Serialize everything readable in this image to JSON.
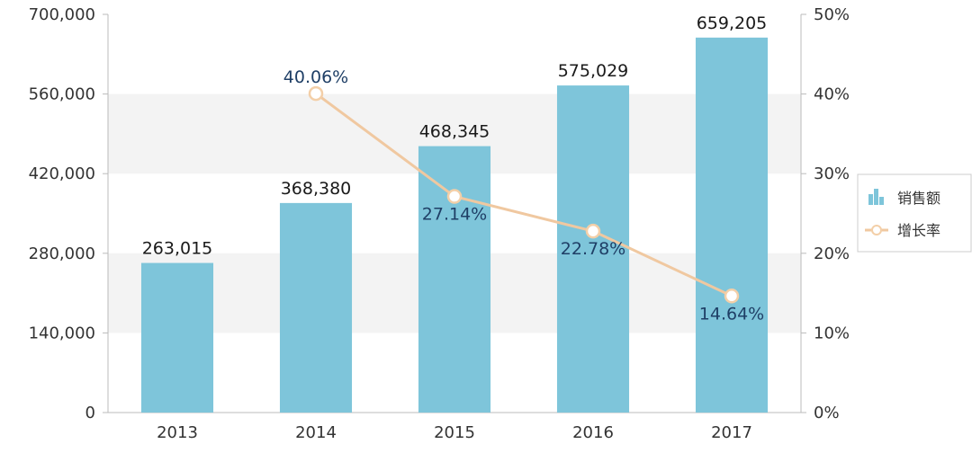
{
  "chart_data": {
    "type": "bar",
    "categories": [
      "2013",
      "2014",
      "2015",
      "2016",
      "2017"
    ],
    "series": [
      {
        "name": "销售额",
        "kind": "bar",
        "axis": "left",
        "values": [
          263015,
          368380,
          468345,
          575029,
          659205
        ],
        "labels": [
          "263,015",
          "368,380",
          "468,345",
          "575,029",
          "659,205"
        ]
      },
      {
        "name": "增长率",
        "kind": "line",
        "axis": "right",
        "values": [
          null,
          40.06,
          27.14,
          22.78,
          14.64
        ],
        "labels": [
          "",
          "40.06%",
          "27.14%",
          "22.78%",
          "14.64%"
        ]
      }
    ],
    "y_left": {
      "range": [
        0,
        700000
      ],
      "ticks": [
        0,
        140000,
        280000,
        420000,
        560000,
        700000
      ],
      "tick_labels": [
        "0",
        "140,000",
        "280,000",
        "420,000",
        "560,000",
        "700,000"
      ]
    },
    "y_right": {
      "range": [
        0,
        50
      ],
      "ticks": [
        0,
        10,
        20,
        30,
        40,
        50
      ],
      "tick_labels": [
        "0%",
        "10%",
        "20%",
        "30%",
        "40%",
        "50%"
      ]
    },
    "legend": {
      "position": "right"
    },
    "colors": {
      "bar": "#7ec5da",
      "line": "#f0c8a0",
      "marker_fill": "#ffffff",
      "marker_stroke": "#f3cfa8",
      "grid_band": "#f3f3f3",
      "axis": "#bbbbbb",
      "label_bar": "#1a1a1a",
      "label_line": "#1f3f66"
    }
  }
}
